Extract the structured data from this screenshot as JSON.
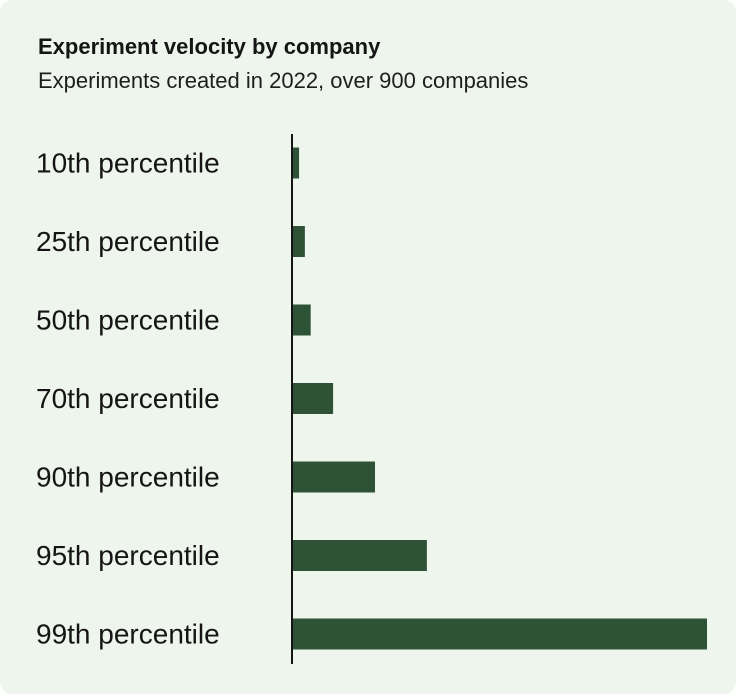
{
  "card": {
    "background": "#eef5ec"
  },
  "chart_data": {
    "type": "bar",
    "orientation": "horizontal",
    "title": "Experiment velocity by company",
    "subtitle": "Experiments created in 2022, over 900 companies",
    "categories": [
      "10th percentile",
      "25th percentile",
      "50th percentile",
      "70th percentile",
      "90th percentile",
      "95th percentile",
      "99th percentile"
    ],
    "values": [
      1.7,
      3.1,
      4.5,
      9.9,
      20,
      32.5,
      100
    ],
    "xlim": [
      0,
      100
    ],
    "grid": false,
    "legend": "none",
    "bar_color": "#2d5236",
    "axis_color": "#151515"
  }
}
